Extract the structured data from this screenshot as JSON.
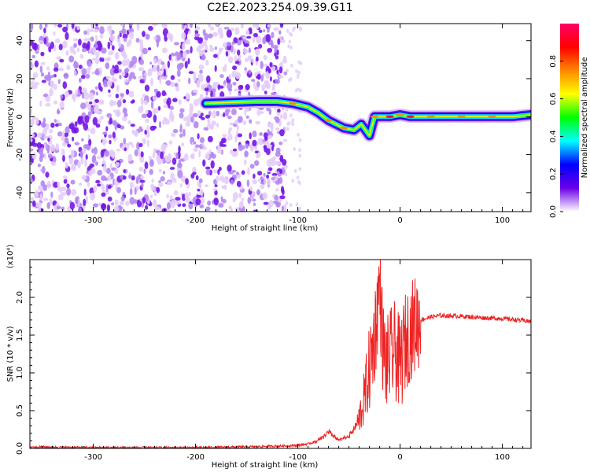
{
  "title": "C2E2.2023.254.09.39.G11",
  "colors": {
    "scatter": "#7a1fe0",
    "snr_line": "#ee2222",
    "colormap": [
      "#ffffff",
      "#e8c8f8",
      "#9a5cf0",
      "#6a00e8",
      "#0000ff",
      "#00ffff",
      "#00ff00",
      "#ffff00",
      "#ff8800",
      "#ff0000",
      "#ff0066"
    ]
  },
  "chart_data": [
    {
      "type": "heatmap",
      "title": "C2E2.2023.254.09.39.G11",
      "xlabel": "Height of straight line (km)",
      "ylabel": "Frequency (Hz)",
      "xlim": [
        -362,
        128
      ],
      "ylim": [
        -50,
        49
      ],
      "x_ticks": [
        "-300",
        "-200",
        "-100",
        "0",
        "100"
      ],
      "x_tick_values": [
        -300,
        -200,
        -100,
        0,
        100
      ],
      "y_ticks": [
        "-40",
        "-20",
        "0",
        "20",
        "40"
      ],
      "y_tick_values": [
        -40,
        -20,
        0,
        20,
        40
      ],
      "colorbar": {
        "label": "Normalized spectral amplitude",
        "range": [
          0,
          1
        ],
        "ticks": [
          "0.0",
          "0.2",
          "0.4",
          "0.6",
          "0.8"
        ],
        "tick_values": [
          0.0,
          0.2,
          0.4,
          0.6,
          0.8
        ]
      },
      "noise_region": {
        "x_range": [
          -362,
          -112
        ],
        "y_range": [
          -50,
          49
        ]
      },
      "ridge": [
        {
          "x": -190,
          "y": 7,
          "amp": 0.35
        },
        {
          "x": -140,
          "y": 8,
          "amp": 0.4
        },
        {
          "x": -120,
          "y": 8,
          "amp": 0.55
        },
        {
          "x": -105,
          "y": 7,
          "amp": 0.75
        },
        {
          "x": -90,
          "y": 5,
          "amp": 0.6
        },
        {
          "x": -80,
          "y": 2,
          "amp": 0.6
        },
        {
          "x": -70,
          "y": -2,
          "amp": 0.7
        },
        {
          "x": -55,
          "y": -6,
          "amp": 0.8
        },
        {
          "x": -45,
          "y": -7,
          "amp": 0.6
        },
        {
          "x": -38,
          "y": -4,
          "amp": 0.5
        },
        {
          "x": -30,
          "y": -10,
          "amp": 0.35
        },
        {
          "x": -25,
          "y": 0,
          "amp": 0.8
        },
        {
          "x": -10,
          "y": 0,
          "amp": 0.9
        },
        {
          "x": 0,
          "y": 1,
          "amp": 0.7
        },
        {
          "x": 10,
          "y": 0,
          "amp": 0.85
        },
        {
          "x": 30,
          "y": 0,
          "amp": 0.75
        },
        {
          "x": 60,
          "y": 0,
          "amp": 0.7
        },
        {
          "x": 90,
          "y": 0,
          "amp": 0.7
        },
        {
          "x": 110,
          "y": 0,
          "amp": 0.65
        },
        {
          "x": 128,
          "y": 1,
          "amp": 0.6
        }
      ]
    },
    {
      "type": "line",
      "xlabel": "Height of straight line (km)",
      "ylabel": "SNR (10 * v/v)",
      "y_multiplier": "(x10⁴)",
      "xlim": [
        -362,
        128
      ],
      "ylim": [
        0,
        2.5
      ],
      "x_ticks": [
        "-300",
        "-200",
        "-100",
        "0",
        "100"
      ],
      "x_tick_values": [
        -300,
        -200,
        -100,
        0,
        100
      ],
      "y_ticks": [
        "0.0",
        "0.5",
        "1.0",
        "1.5",
        "2.0"
      ],
      "y_tick_values": [
        0.0,
        0.5,
        1.0,
        1.5,
        2.0
      ],
      "series": [
        {
          "x": [
            -362,
            -300,
            -250,
            -200,
            -150,
            -120,
            -100,
            -90,
            -80,
            -70,
            -60,
            -50,
            -42,
            -36,
            -32,
            -28,
            -24,
            -20,
            -17,
            -14,
            -10,
            -5,
            0,
            5,
            10,
            15,
            20,
            25,
            30,
            40,
            60,
            80,
            100,
            115,
            128
          ],
          "values": [
            0.02,
            0.01,
            0.01,
            0.01,
            0.02,
            0.03,
            0.04,
            0.06,
            0.1,
            0.2,
            0.1,
            0.15,
            0.3,
            0.6,
            0.9,
            1.2,
            1.6,
            2.2,
            1.4,
            1.1,
            1.2,
            1.3,
            1.1,
            1.4,
            1.55,
            1.65,
            1.7,
            1.72,
            1.74,
            1.76,
            1.75,
            1.73,
            1.72,
            1.7,
            1.68
          ]
        }
      ]
    }
  ]
}
